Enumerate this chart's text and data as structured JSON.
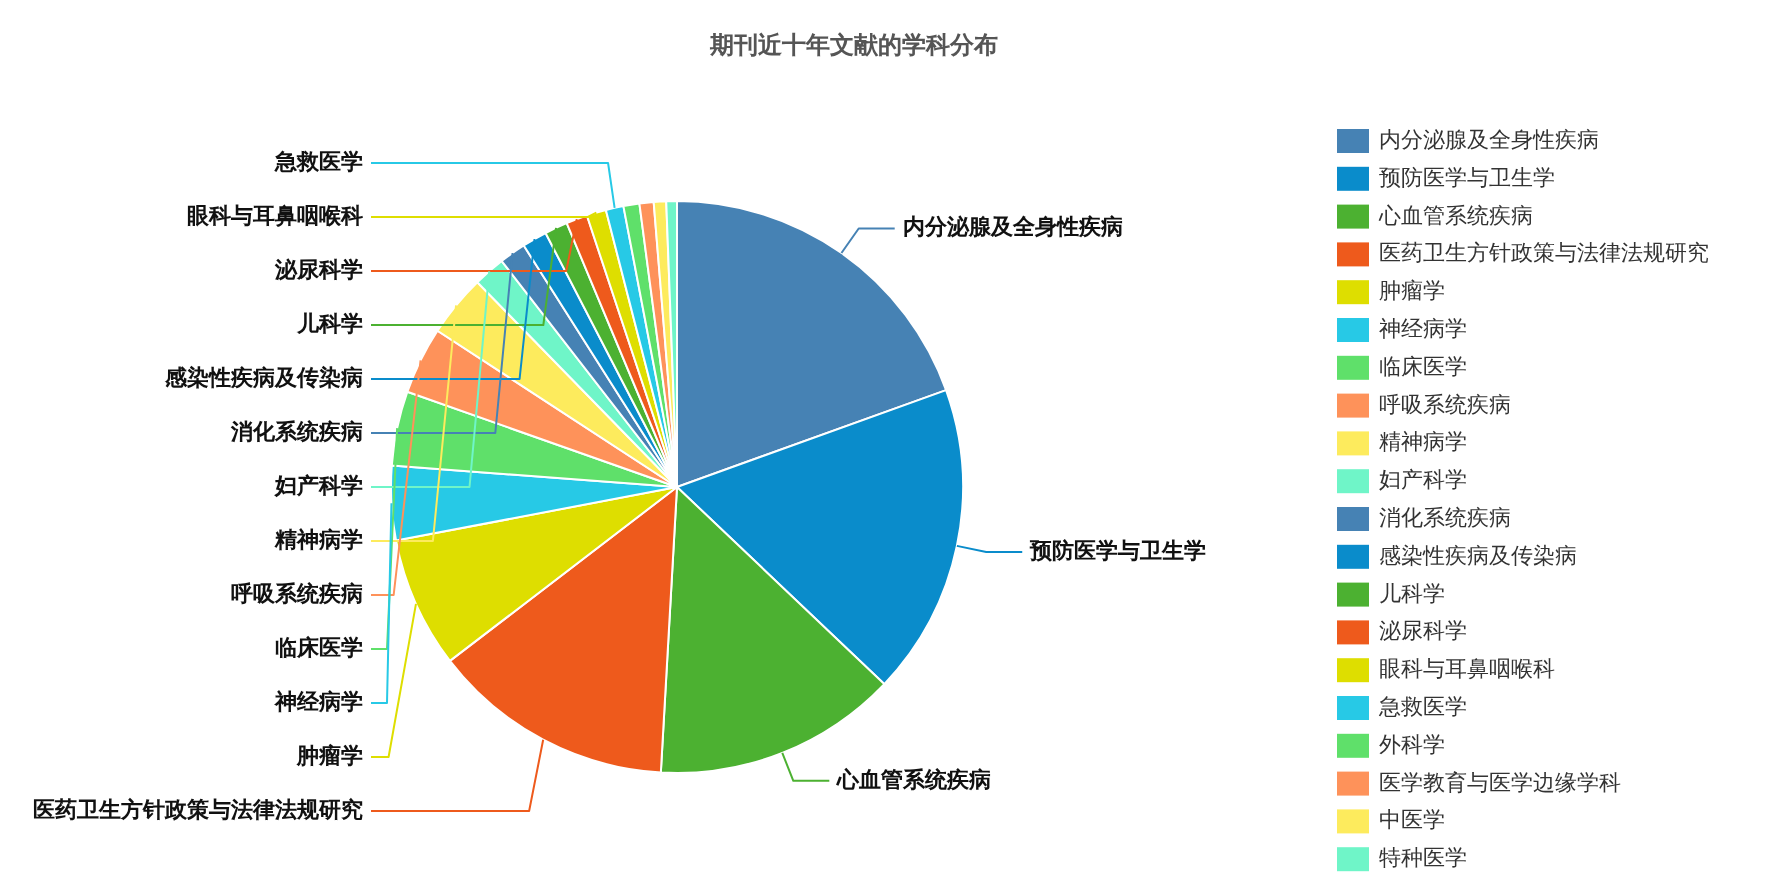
{
  "chart_data": {
    "type": "pie",
    "title": "期刊近十年文献的学科分布",
    "categories": [
      "内分泌腺及全身性疾病",
      "预防医学与卫生学",
      "心血管系统疾病",
      "医药卫生方针政策与法律法规研究",
      "肿瘤学",
      "神经病学",
      "临床医学",
      "呼吸系统疾病",
      "精神病学",
      "妇产科学",
      "消化系统疾病",
      "感染性疾病及传染病",
      "儿科学",
      "泌尿科学",
      "眼科与耳鼻咽喉科",
      "急救医学",
      "外科学",
      "医学教育与医学边缘学科",
      "中医学",
      "特种医学"
    ],
    "values": [
      19.5,
      17.6,
      13.8,
      13.7,
      7.4,
      4.2,
      4.2,
      3.8,
      3.5,
      1.8,
      1.5,
      1.4,
      1.3,
      1.2,
      1.1,
      1.0,
      0.9,
      0.8,
      0.7,
      0.6
    ],
    "colors": [
      "#4682b4",
      "#0a8ccb",
      "#4cb131",
      "#ee5a1c",
      "#dede00",
      "#27c9e6",
      "#5fe06a",
      "#fe925a",
      "#fdeb5d",
      "#6ff5c8",
      "#4682b4",
      "#0a8ccb",
      "#4cb131",
      "#ee5a1c",
      "#dede00",
      "#27c9e6",
      "#5fe06a",
      "#fe925a",
      "#fdeb5d",
      "#6ff5c8"
    ],
    "legend": "right"
  }
}
